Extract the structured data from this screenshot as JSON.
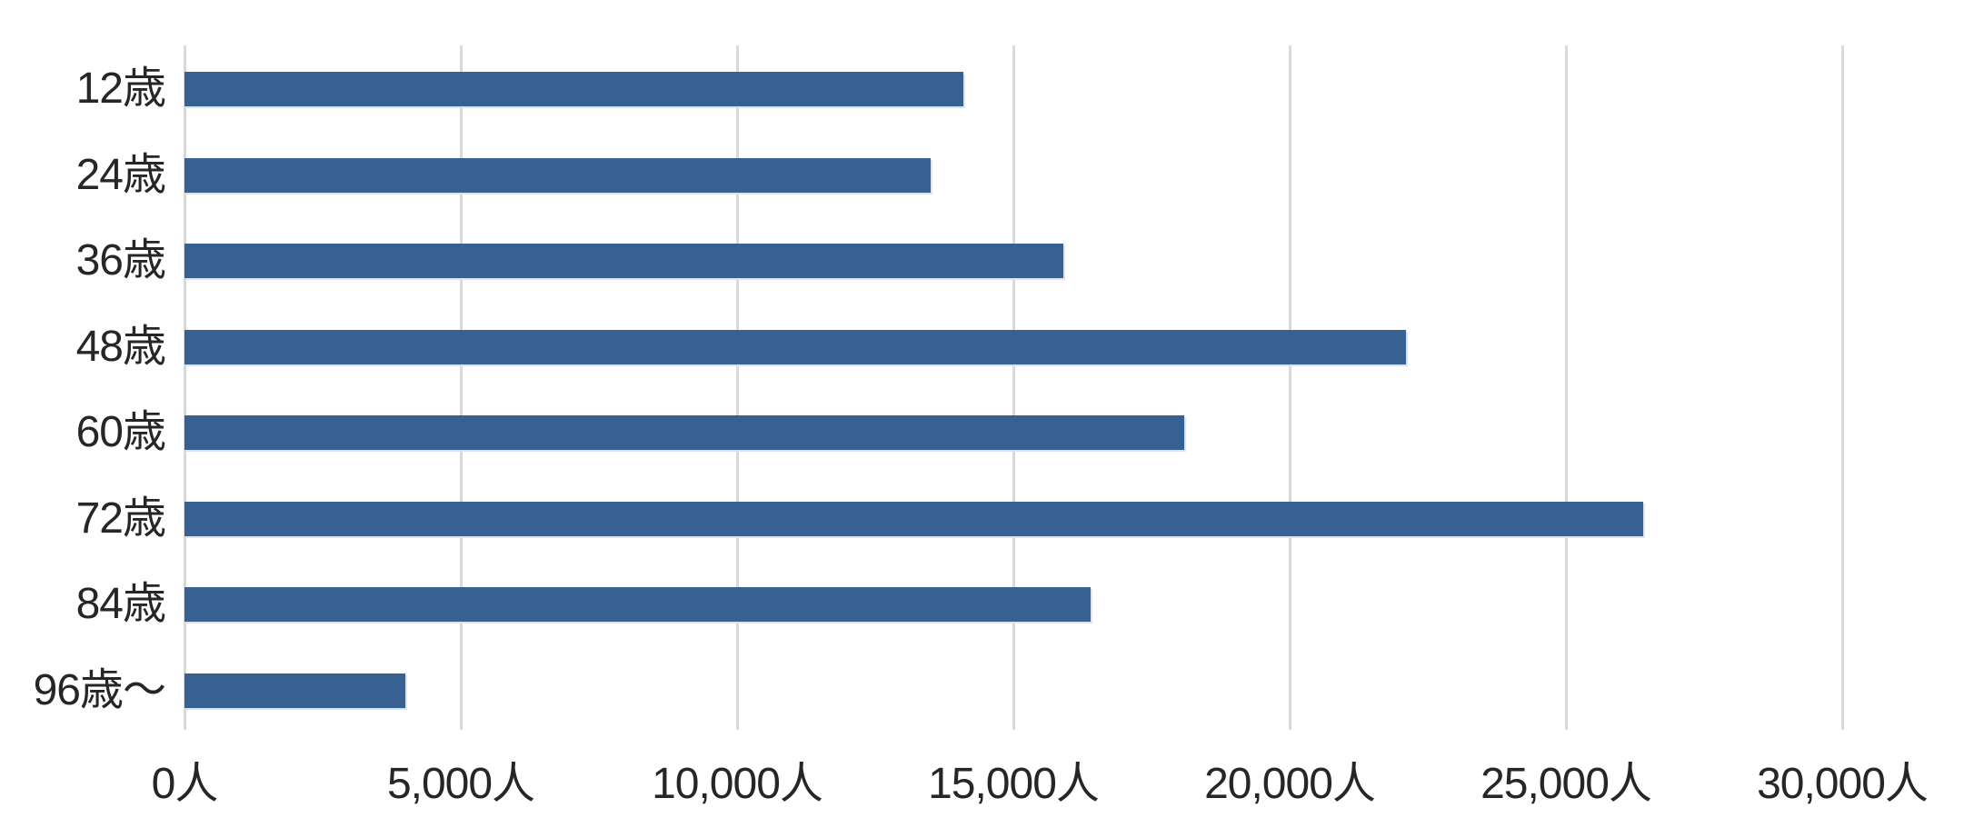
{
  "chart_data": {
    "type": "bar",
    "orientation": "horizontal",
    "title": "",
    "xlabel": "",
    "ylabel": "",
    "categories": [
      "12歳",
      "24歳",
      "36歳",
      "48歳",
      "60歳",
      "72歳",
      "84歳",
      "96歳〜"
    ],
    "values": [
      14100,
      13500,
      15900,
      22100,
      18100,
      26400,
      16400,
      4000
    ],
    "unit": "人",
    "xlim": [
      0,
      30000
    ],
    "x_ticks": [
      0,
      5000,
      10000,
      15000,
      20000,
      25000,
      30000
    ],
    "x_tick_labels": [
      "0人",
      "5,000人",
      "10,000人",
      "15,000人",
      "20,000人",
      "25,000人",
      "30,000人"
    ],
    "grid": "vertical-on",
    "legend": "none",
    "colors": {
      "bar": "#366192",
      "bar_edge": "#dbe4f1",
      "gridline": "#d9d9d9",
      "axis_line": "#d9d9d9",
      "text": "#262626",
      "background": "#ffffff"
    }
  }
}
